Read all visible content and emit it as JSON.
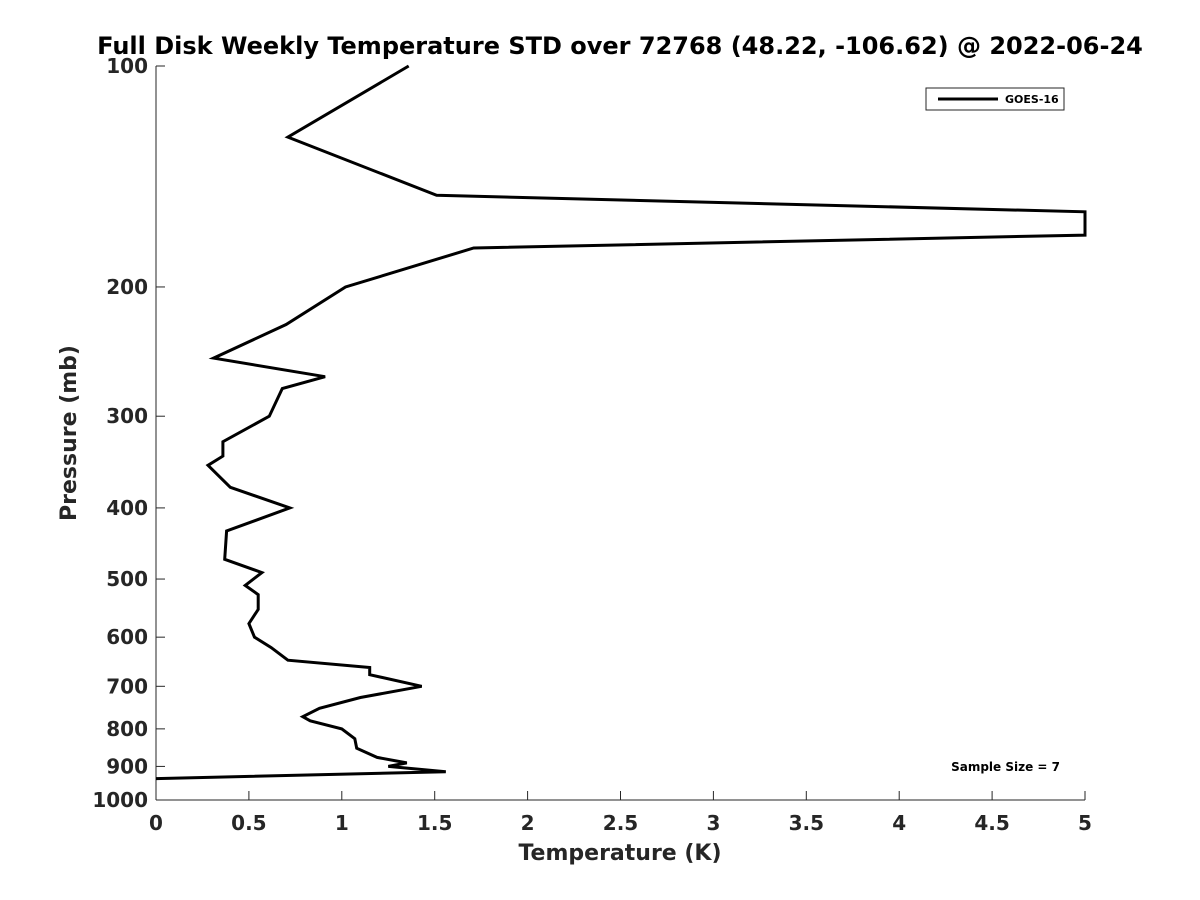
{
  "chart_data": {
    "type": "line",
    "title": "Full Disk Weekly Temperature STD over 72768 (48.22, -106.62) @ 2022-06-24",
    "xlabel": "Temperature (K)",
    "ylabel": "Pressure (mb)",
    "xlim": [
      0,
      5
    ],
    "ylim": [
      100,
      1000
    ],
    "yscale": "log",
    "y_reversed": true,
    "grid": false,
    "x_ticks": [
      0,
      0.5,
      1,
      1.5,
      2,
      2.5,
      3,
      3.5,
      4,
      4.5,
      5
    ],
    "x_tick_labels": [
      "0",
      "0.5",
      "1",
      "1.5",
      "2",
      "2.5",
      "3",
      "3.5",
      "4",
      "4.5",
      "5"
    ],
    "y_ticks": [
      100,
      200,
      300,
      400,
      500,
      600,
      700,
      800,
      900,
      1000
    ],
    "y_tick_labels": [
      "100",
      "200",
      "300",
      "400",
      "500",
      "600",
      "700",
      "800",
      "900",
      "1000"
    ],
    "legend_position": "top-right",
    "series": [
      {
        "name": "GOES-16",
        "color": "#000000",
        "points": [
          [
            1.36,
            100
          ],
          [
            0.71,
            125
          ],
          [
            1.51,
            150
          ],
          [
            5.0,
            158
          ],
          [
            5.0,
            170
          ],
          [
            1.71,
            177
          ],
          [
            1.02,
            200
          ],
          [
            0.7,
            225
          ],
          [
            0.31,
            250
          ],
          [
            0.91,
            265
          ],
          [
            0.68,
            275
          ],
          [
            0.61,
            300
          ],
          [
            0.36,
            325
          ],
          [
            0.36,
            340
          ],
          [
            0.28,
            350
          ],
          [
            0.4,
            375
          ],
          [
            0.72,
            400
          ],
          [
            0.38,
            430
          ],
          [
            0.37,
            470
          ],
          [
            0.57,
            490
          ],
          [
            0.48,
            510
          ],
          [
            0.55,
            525
          ],
          [
            0.55,
            550
          ],
          [
            0.5,
            575
          ],
          [
            0.53,
            600
          ],
          [
            0.62,
            620
          ],
          [
            0.71,
            645
          ],
          [
            1.15,
            660
          ],
          [
            1.15,
            675
          ],
          [
            1.43,
            700
          ],
          [
            1.1,
            725
          ],
          [
            0.88,
            750
          ],
          [
            0.79,
            770
          ],
          [
            0.83,
            780
          ],
          [
            1.0,
            800
          ],
          [
            1.07,
            825
          ],
          [
            1.08,
            850
          ],
          [
            1.19,
            875
          ],
          [
            1.35,
            890
          ],
          [
            1.25,
            900
          ],
          [
            1.56,
            915
          ],
          [
            0.0,
            935
          ]
        ]
      }
    ],
    "annotations": [
      "Sample Size = 7"
    ]
  }
}
